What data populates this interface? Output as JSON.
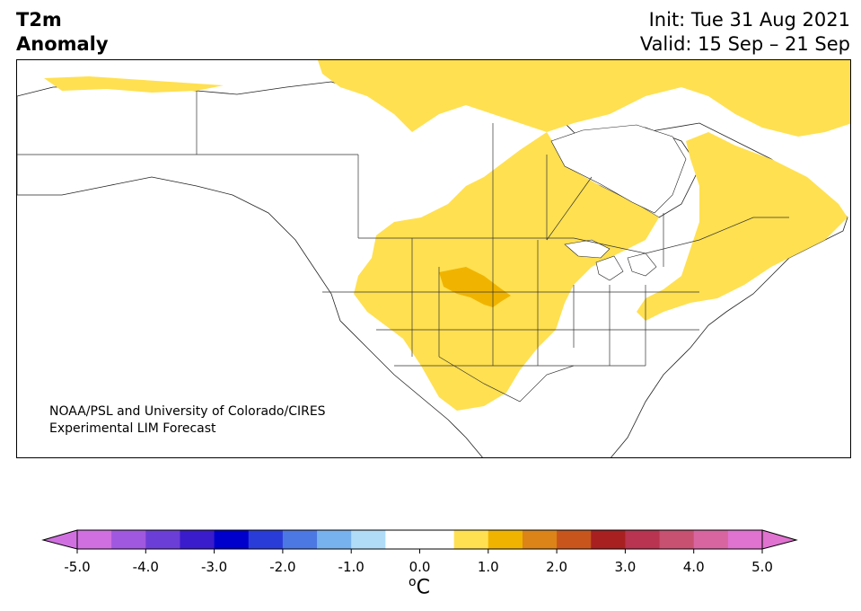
{
  "title": {
    "line1": "T2m",
    "line2": "Anomaly"
  },
  "dates": {
    "init": "Init: Tue 31 Aug 2021",
    "valid": "Valid: 15 Sep – 21 Sep"
  },
  "credit": {
    "line1": "NOAA/PSL and University of Colorado/CIRES",
    "line2": "Experimental LIM Forecast"
  },
  "colorbar": {
    "unit_base": "C",
    "unit_sup": "o",
    "ticks": [
      "-5.0",
      "-4.0",
      "-3.0",
      "-2.0",
      "-1.0",
      "0.0",
      "1.0",
      "2.0",
      "3.0",
      "4.0",
      "5.0"
    ],
    "colors": [
      "#d070e0",
      "#a058e0",
      "#6c3ed8",
      "#3a1ccc",
      "#0000cc",
      "#2a3cd8",
      "#4c78e4",
      "#78b2ee",
      "#b0dcf8",
      "#ffffff",
      "#ffffff",
      "#ffe050",
      "#f0b400",
      "#dc8418",
      "#c8561c",
      "#a82020",
      "#b83450",
      "#c85070",
      "#d865a0",
      "#e072d0"
    ],
    "min_arrow_color": "#d070e0",
    "max_arrow_color": "#e072d0"
  },
  "map": {
    "anomaly_colors": {
      "weak_warm": "#ffe050",
      "moderate_warm": "#f0b400"
    },
    "regions": [
      "North America"
    ]
  }
}
